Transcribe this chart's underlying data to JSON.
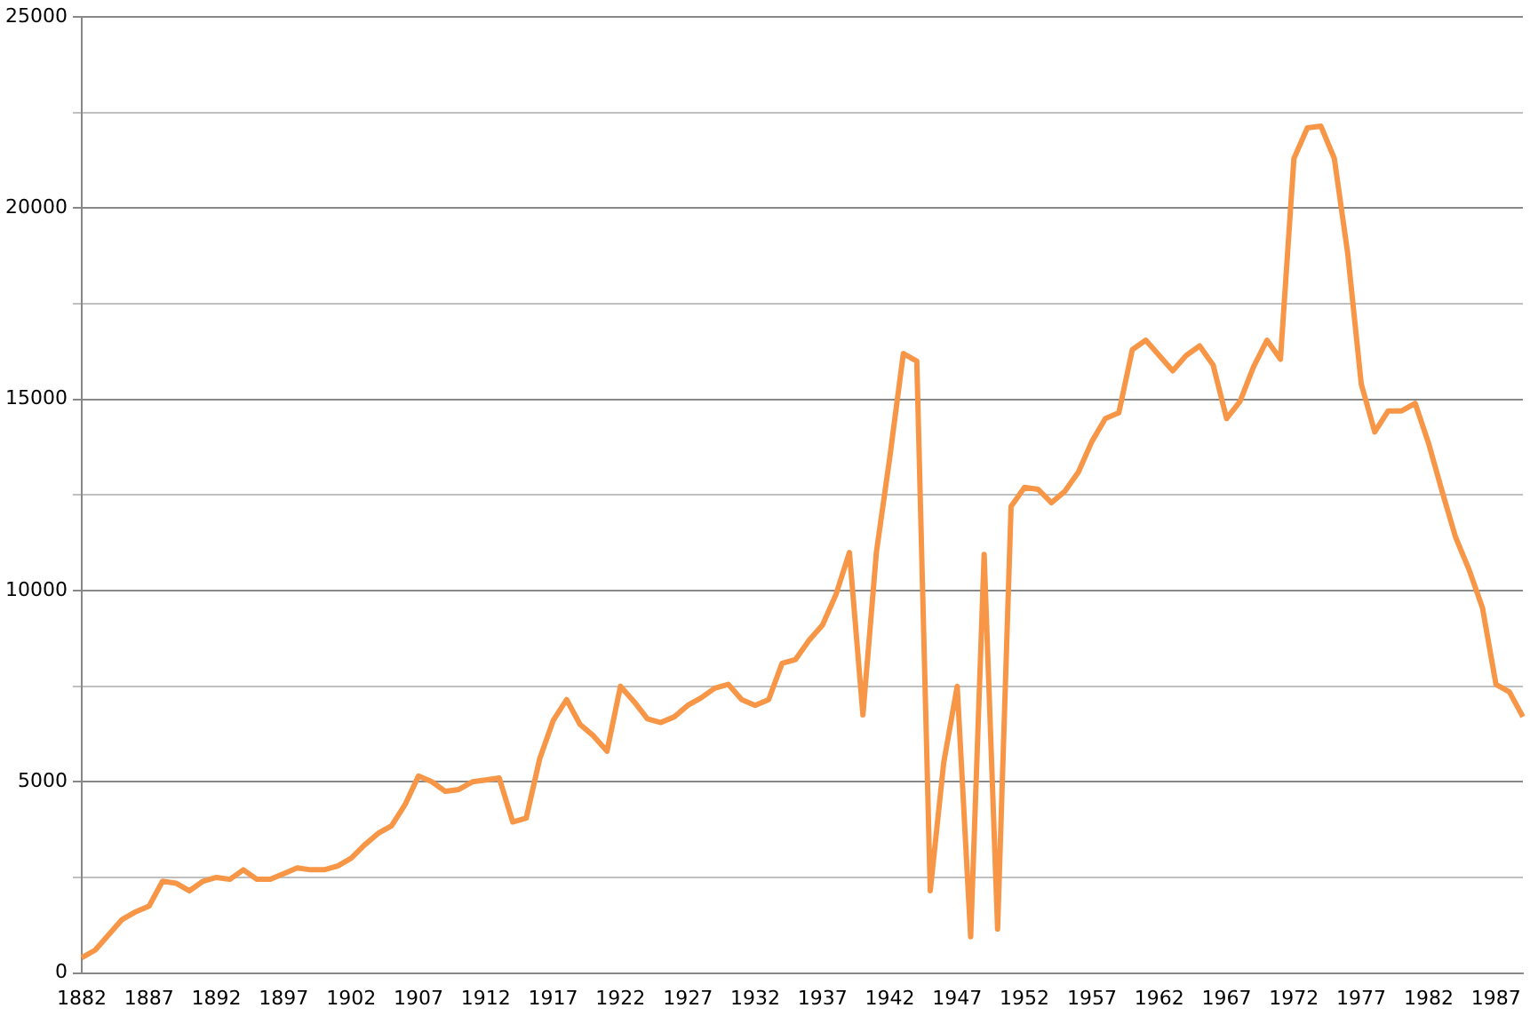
{
  "chart_data": {
    "type": "line",
    "categories": [
      "1882",
      null,
      null,
      null,
      null,
      "1887",
      null,
      null,
      null,
      null,
      "1892",
      null,
      null,
      null,
      null,
      "1897",
      null,
      null,
      null,
      null,
      "1902",
      null,
      null,
      null,
      null,
      "1907",
      null,
      null,
      null,
      null,
      "1912",
      null,
      null,
      null,
      null,
      "1917",
      null,
      null,
      null,
      null,
      "1922",
      null,
      null,
      null,
      null,
      "1927",
      null,
      null,
      null,
      null,
      "1932",
      null,
      null,
      null,
      null,
      "1937",
      null,
      null,
      null,
      null,
      "1942",
      null,
      null,
      null,
      null,
      "1947",
      null,
      null,
      null,
      null,
      "1952",
      null,
      null,
      null,
      null,
      "1957",
      null,
      null,
      null,
      null,
      "1962",
      null,
      null,
      null,
      null,
      "1967",
      null,
      null,
      null,
      null,
      "1972",
      null,
      null,
      null,
      null,
      "1977",
      null,
      null,
      null,
      null,
      "1982",
      null,
      null,
      null,
      null,
      "1987",
      null,
      null
    ],
    "series": [
      {
        "color": "#f79646",
        "values": [
          400,
          600,
          1000,
          1400,
          1600,
          1750,
          2400,
          2350,
          2150,
          2400,
          2500,
          2450,
          2700,
          2450,
          2450,
          2600,
          2750,
          2700,
          2700,
          2800,
          3000,
          3350,
          3650,
          3850,
          4400,
          5150,
          5000,
          4750,
          4800,
          5000,
          5050,
          5100,
          3950,
          4050,
          5600,
          6600,
          7150,
          6500,
          6200,
          5800,
          7500,
          7100,
          6650,
          6550,
          6700,
          7000,
          7200,
          7450,
          7550,
          7150,
          7000,
          7150,
          8100,
          8200,
          8700,
          9100,
          9900,
          11000,
          6750,
          11000,
          13500,
          16200,
          16000,
          2150,
          5500,
          7500,
          950,
          10950,
          1150,
          12200,
          12700,
          12650,
          12300,
          12600,
          13100,
          13900,
          14500,
          14650,
          16300,
          16550,
          16150,
          15750,
          16150,
          16400,
          15900,
          14500,
          14950,
          15850,
          16550,
          16050,
          21300,
          22100,
          22150,
          21300,
          18800,
          15400,
          14150,
          14700,
          14700,
          14900,
          13850,
          12600,
          11400,
          10550,
          9550,
          7550,
          7350,
          6700
        ]
      }
    ],
    "ylim": [
      0,
      25000
    ],
    "yticks": [
      0,
      {
        "value": 2500,
        "label": null
      },
      5000,
      {
        "value": 7500,
        "label": null
      },
      10000,
      {
        "value": 12500,
        "label": null
      },
      15000,
      {
        "value": 17500,
        "label": null
      },
      20000,
      {
        "value": 22500,
        "label": null
      },
      25000
    ],
    "grid": "y",
    "legend": false,
    "marker": "none",
    "line_style": "solid"
  }
}
